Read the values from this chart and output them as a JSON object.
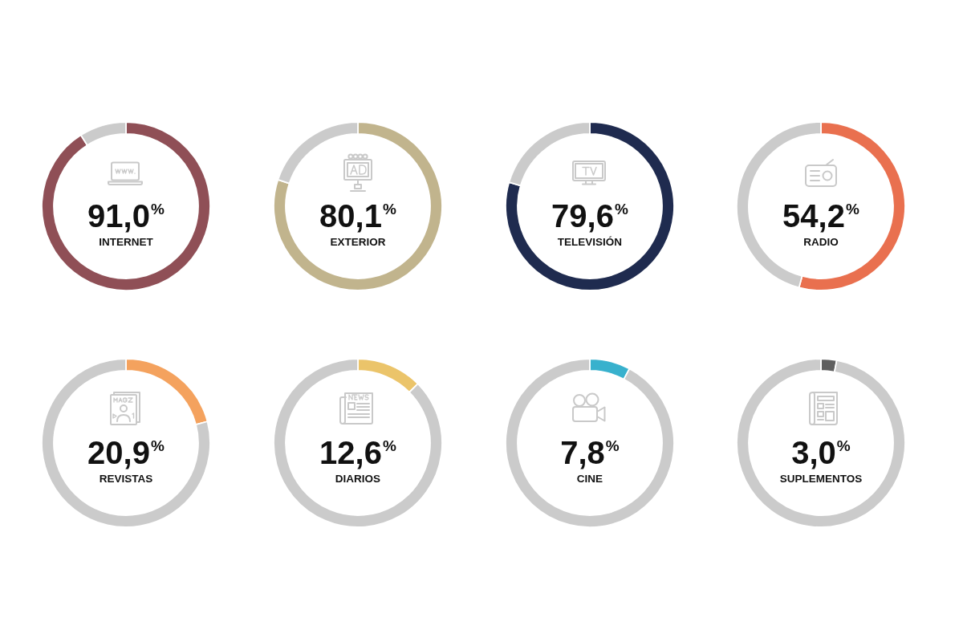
{
  "chart_data": [
    {
      "type": "donut",
      "title": "INTERNET",
      "annotations": [
        "91,0$^{%}$"
      ],
      "categories": [
        null,
        null
      ],
      "values": [
        91.0,
        9.0
      ],
      "colors": [
        "#8f4f56",
        "#cbcbcb"
      ]
    },
    {
      "type": "donut",
      "title": "EXTERIOR",
      "annotations": [
        "80,1$^{%}$"
      ],
      "categories": [
        null,
        null
      ],
      "values": [
        80.1,
        19.9
      ],
      "colors": [
        "#c1b48d",
        "#cbcbcb"
      ]
    },
    {
      "type": "donut",
      "title": "TELEVISIÓN",
      "annotations": [
        "79,6$^{%}$"
      ],
      "categories": [
        null,
        null
      ],
      "values": [
        79.6,
        20.4
      ],
      "colors": [
        "#1f2b4f",
        "#cbcbcb"
      ]
    },
    {
      "type": "donut",
      "title": "RADIO",
      "annotations": [
        "54,2$^{%}$"
      ],
      "categories": [
        null,
        null
      ],
      "values": [
        54.2,
        45.8
      ],
      "colors": [
        "#e9704f",
        "#cbcbcb"
      ]
    },
    {
      "type": "donut",
      "title": "REVISTAS",
      "annotations": [
        "20,9$^{%}$"
      ],
      "categories": [
        null,
        null
      ],
      "values": [
        20.9,
        79.1
      ],
      "colors": [
        "#f4a25e",
        "#cbcbcb"
      ]
    },
    {
      "type": "donut",
      "title": "DIARIOS",
      "annotations": [
        "12,6$^{%}$"
      ],
      "categories": [
        null,
        null
      ],
      "values": [
        12.6,
        87.4
      ],
      "colors": [
        "#ebc46a",
        "#cbcbcb"
      ]
    },
    {
      "type": "donut",
      "title": "CINE",
      "annotations": [
        "7,8$^{%}$"
      ],
      "categories": [
        null,
        null
      ],
      "values": [
        7.8,
        92.2
      ],
      "colors": [
        "#38b1cd",
        "#cbcbcb"
      ]
    },
    {
      "type": "donut",
      "title": "SUPLEMENTOS",
      "annotations": [
        "3,0$^{%}$"
      ],
      "categories": [
        null,
        null
      ],
      "values": [
        3.0,
        97.0
      ],
      "colors": [
        "#5f5f5f",
        "#cbcbcb"
      ]
    }
  ]
}
